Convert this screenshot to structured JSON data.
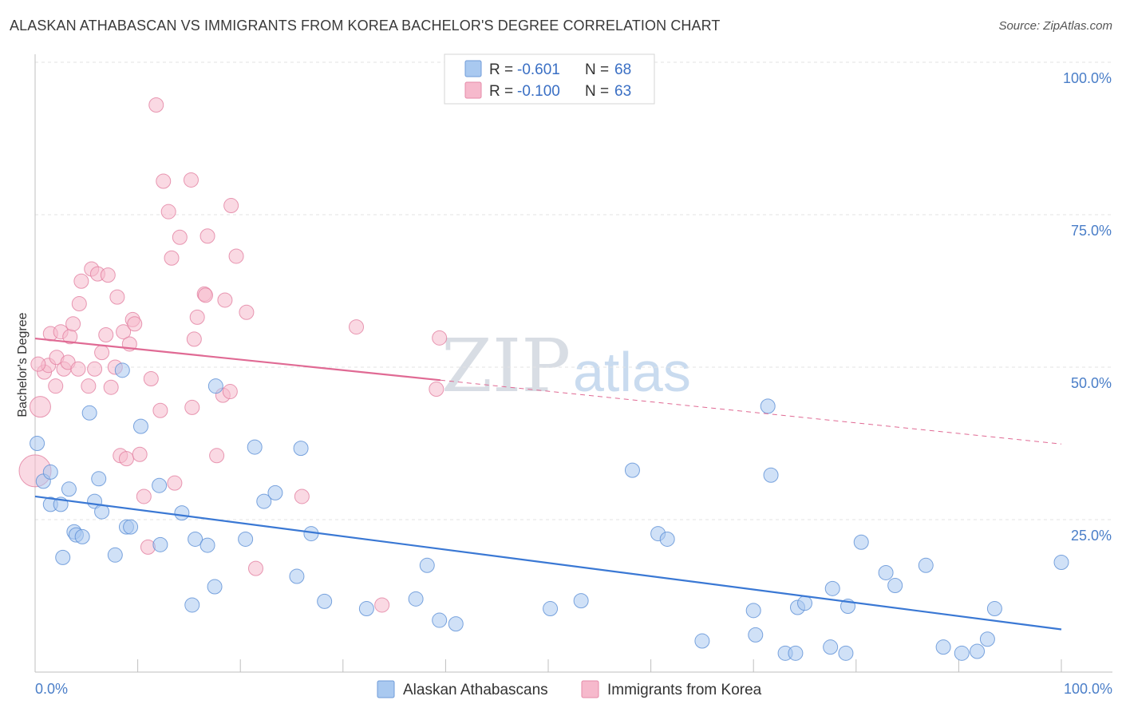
{
  "header": {
    "title": "ALASKAN ATHABASCAN VS IMMIGRANTS FROM KOREA BACHELOR'S DEGREE CORRELATION CHART",
    "source": "Source: ZipAtlas.com"
  },
  "watermark": {
    "zip": "ZIP",
    "atlas": "atlas"
  },
  "legend": {
    "r_label": "R =",
    "n_label": "N =",
    "entries": [
      {
        "r": "-0.601",
        "n": "68",
        "color": "#a9c9f0"
      },
      {
        "r": "-0.100",
        "n": "63",
        "color": "#f6b9cc"
      }
    ]
  },
  "chart_data": {
    "type": "scatter",
    "ylabel": "Bachelor's Degree",
    "xlim": [
      0,
      100
    ],
    "ylim": [
      0,
      100
    ],
    "x_tick_labels": [
      "0.0%",
      "100.0%"
    ],
    "y_ticks": [
      {
        "value": 25,
        "label": "25.0%"
      },
      {
        "value": 50,
        "label": "50.0%"
      },
      {
        "value": 75,
        "label": "75.0%"
      },
      {
        "value": 100,
        "label": "100.0%"
      }
    ],
    "series": [
      {
        "name": "Alaskan Athabascans",
        "color": "#a9c9f0",
        "stroke": "#5b8fd6",
        "line_color": "#3a78d4",
        "trend": {
          "x0": 0,
          "y0": 28.8,
          "x1": 100,
          "y1": 7.0,
          "dashed_from": null
        },
        "points": [
          [
            0.2,
            37.5
          ],
          [
            0.8,
            31.3
          ],
          [
            1.5,
            32.8
          ],
          [
            1.5,
            27.5
          ],
          [
            2.5,
            27.5
          ],
          [
            3.3,
            30.0
          ],
          [
            2.7,
            18.8
          ],
          [
            3.8,
            23.0
          ],
          [
            4.0,
            22.5
          ],
          [
            4.6,
            22.2
          ],
          [
            5.3,
            42.5
          ],
          [
            5.8,
            28.0
          ],
          [
            6.2,
            31.7
          ],
          [
            6.5,
            26.3
          ],
          [
            7.8,
            19.2
          ],
          [
            8.5,
            49.5
          ],
          [
            8.9,
            23.8
          ],
          [
            9.3,
            23.8
          ],
          [
            10.3,
            40.3
          ],
          [
            12.1,
            30.6
          ],
          [
            12.2,
            20.9
          ],
          [
            14.3,
            26.1
          ],
          [
            15.3,
            11.0
          ],
          [
            15.6,
            21.8
          ],
          [
            16.8,
            20.8
          ],
          [
            17.5,
            14.0
          ],
          [
            17.6,
            46.9
          ],
          [
            20.5,
            21.8
          ],
          [
            21.4,
            36.9
          ],
          [
            22.3,
            28.0
          ],
          [
            23.4,
            29.4
          ],
          [
            25.5,
            15.7
          ],
          [
            25.9,
            36.7
          ],
          [
            26.9,
            22.7
          ],
          [
            28.2,
            11.6
          ],
          [
            32.3,
            10.4
          ],
          [
            37.1,
            12.0
          ],
          [
            38.2,
            17.5
          ],
          [
            39.4,
            8.5
          ],
          [
            41.0,
            7.9
          ],
          [
            50.2,
            10.4
          ],
          [
            53.2,
            11.7
          ],
          [
            58.2,
            33.1
          ],
          [
            60.7,
            22.7
          ],
          [
            61.6,
            21.8
          ],
          [
            65.0,
            5.1
          ],
          [
            70.0,
            10.1
          ],
          [
            70.2,
            6.1
          ],
          [
            71.4,
            43.6
          ],
          [
            71.7,
            32.3
          ],
          [
            73.1,
            3.1
          ],
          [
            74.1,
            3.1
          ],
          [
            74.3,
            10.6
          ],
          [
            75.0,
            11.3
          ],
          [
            77.5,
            4.1
          ],
          [
            77.7,
            13.7
          ],
          [
            79.0,
            3.1
          ],
          [
            79.2,
            10.8
          ],
          [
            80.5,
            21.3
          ],
          [
            82.9,
            16.3
          ],
          [
            83.8,
            14.2
          ],
          [
            86.8,
            17.5
          ],
          [
            88.5,
            4.1
          ],
          [
            90.3,
            3.1
          ],
          [
            91.8,
            3.4
          ],
          [
            92.8,
            5.4
          ],
          [
            93.5,
            10.4
          ],
          [
            100.0,
            18.0
          ]
        ]
      },
      {
        "name": "Immigrants from Korea",
        "color": "#f6b9cc",
        "stroke": "#e27fa0",
        "line_color": "#e06a94",
        "trend": {
          "x0": 0,
          "y0": 54.7,
          "x1": 100,
          "y1": 37.4,
          "dashed_from": 39.5
        },
        "points": [
          [
            0.0,
            33.0
          ],
          [
            0.5,
            43.5
          ],
          [
            0.9,
            49.2
          ],
          [
            1.3,
            50.3
          ],
          [
            1.5,
            55.5
          ],
          [
            2.0,
            46.9
          ],
          [
            2.1,
            51.6
          ],
          [
            2.5,
            55.8
          ],
          [
            2.8,
            49.7
          ],
          [
            3.2,
            50.8
          ],
          [
            3.4,
            55.0
          ],
          [
            3.7,
            57.1
          ],
          [
            4.2,
            49.7
          ],
          [
            4.3,
            60.4
          ],
          [
            4.5,
            64.1
          ],
          [
            5.2,
            46.9
          ],
          [
            5.5,
            66.1
          ],
          [
            5.8,
            49.7
          ],
          [
            6.1,
            65.3
          ],
          [
            6.5,
            52.4
          ],
          [
            6.9,
            55.3
          ],
          [
            7.1,
            65.1
          ],
          [
            7.4,
            46.7
          ],
          [
            7.8,
            50.0
          ],
          [
            8.0,
            61.5
          ],
          [
            8.3,
            35.5
          ],
          [
            8.6,
            55.8
          ],
          [
            8.9,
            35.0
          ],
          [
            9.2,
            53.8
          ],
          [
            9.5,
            57.8
          ],
          [
            9.7,
            57.1
          ],
          [
            10.2,
            35.7
          ],
          [
            10.6,
            28.8
          ],
          [
            11.0,
            20.5
          ],
          [
            11.3,
            48.1
          ],
          [
            11.8,
            93.0
          ],
          [
            12.2,
            42.9
          ],
          [
            12.5,
            80.5
          ],
          [
            13.0,
            75.5
          ],
          [
            13.3,
            67.9
          ],
          [
            13.6,
            31.0
          ],
          [
            14.1,
            71.3
          ],
          [
            15.2,
            80.7
          ],
          [
            15.3,
            43.4
          ],
          [
            15.5,
            54.6
          ],
          [
            15.8,
            58.2
          ],
          [
            16.5,
            62.0
          ],
          [
            16.6,
            61.8
          ],
          [
            16.8,
            71.5
          ],
          [
            17.7,
            35.5
          ],
          [
            18.3,
            45.4
          ],
          [
            18.5,
            61.0
          ],
          [
            19.0,
            46.0
          ],
          [
            19.1,
            76.5
          ],
          [
            19.6,
            68.2
          ],
          [
            20.6,
            59.0
          ],
          [
            21.5,
            17.0
          ],
          [
            26.0,
            28.8
          ],
          [
            31.3,
            56.6
          ],
          [
            33.8,
            11.0
          ],
          [
            39.1,
            46.4
          ],
          [
            39.4,
            54.8
          ],
          [
            0.3,
            50.5
          ]
        ]
      }
    ]
  }
}
